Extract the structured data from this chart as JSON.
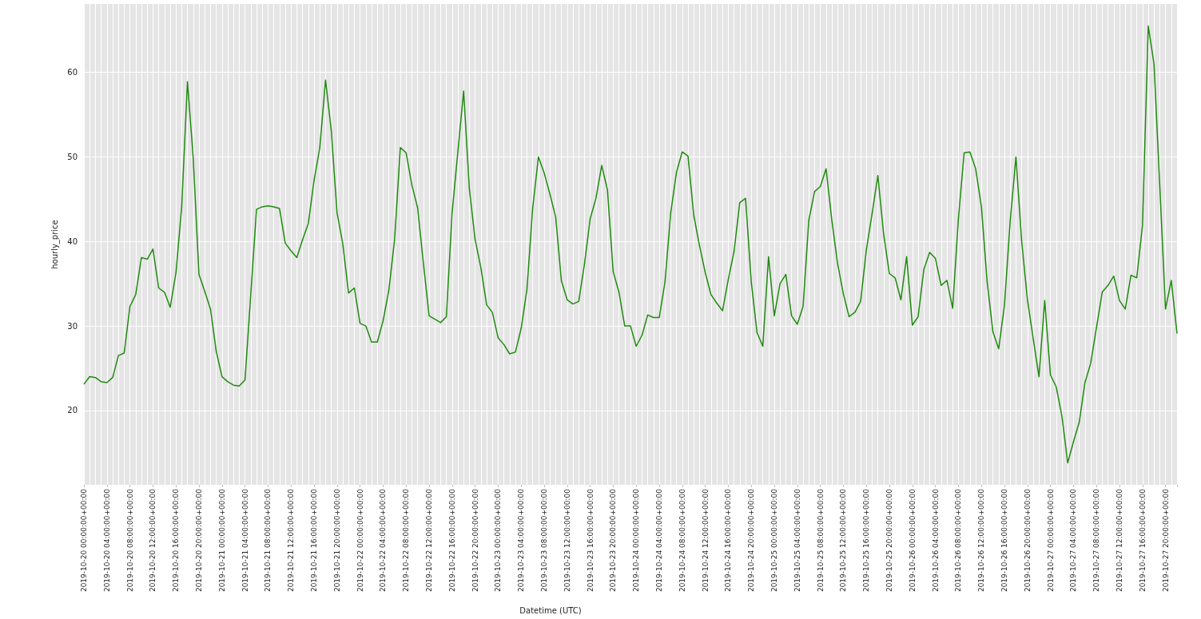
{
  "chart_data": {
    "type": "line",
    "xlabel": "Datetime (UTC)",
    "ylabel": "hourly_price",
    "categories": [
      "2019-10-20 00:00:00+00:00",
      null,
      null,
      null,
      "2019-10-20 04:00:00+00:00",
      null,
      null,
      null,
      "2019-10-20 08:00:00+00:00",
      null,
      null,
      null,
      "2019-10-20 12:00:00+00:00",
      null,
      null,
      null,
      "2019-10-20 16:00:00+00:00",
      null,
      null,
      null,
      "2019-10-20 20:00:00+00:00",
      null,
      null,
      null,
      "2019-10-21 00:00:00+00:00",
      null,
      null,
      null,
      "2019-10-21 04:00:00+00:00",
      null,
      null,
      null,
      "2019-10-21 08:00:00+00:00",
      null,
      null,
      null,
      "2019-10-21 12:00:00+00:00",
      null,
      null,
      null,
      "2019-10-21 16:00:00+00:00",
      null,
      null,
      null,
      "2019-10-21 20:00:00+00:00",
      null,
      null,
      null,
      "2019-10-22 00:00:00+00:00",
      null,
      null,
      null,
      "2019-10-22 04:00:00+00:00",
      null,
      null,
      null,
      "2019-10-22 08:00:00+00:00",
      null,
      null,
      null,
      "2019-10-22 12:00:00+00:00",
      null,
      null,
      null,
      "2019-10-22 16:00:00+00:00",
      null,
      null,
      null,
      "2019-10-22 20:00:00+00:00",
      null,
      null,
      null,
      "2019-10-23 00:00:00+00:00",
      null,
      null,
      null,
      "2019-10-23 04:00:00+00:00",
      null,
      null,
      null,
      "2019-10-23 08:00:00+00:00",
      null,
      null,
      null,
      "2019-10-23 12:00:00+00:00",
      null,
      null,
      null,
      "2019-10-23 16:00:00+00:00",
      null,
      null,
      null,
      "2019-10-23 20:00:00+00:00",
      null,
      null,
      null,
      "2019-10-24 00:00:00+00:00",
      null,
      null,
      null,
      "2019-10-24 04:00:00+00:00",
      null,
      null,
      null,
      "2019-10-24 08:00:00+00:00",
      null,
      null,
      null,
      "2019-10-24 12:00:00+00:00",
      null,
      null,
      null,
      "2019-10-24 16:00:00+00:00",
      null,
      null,
      null,
      "2019-10-24 20:00:00+00:00",
      null,
      null,
      null,
      "2019-10-25 00:00:00+00:00",
      null,
      null,
      null,
      "2019-10-25 04:00:00+00:00",
      null,
      null,
      null,
      "2019-10-25 08:00:00+00:00",
      null,
      null,
      null,
      "2019-10-25 12:00:00+00:00",
      null,
      null,
      null,
      "2019-10-25 16:00:00+00:00",
      null,
      null,
      null,
      "2019-10-25 20:00:00+00:00",
      null,
      null,
      null,
      "2019-10-26 00:00:00+00:00",
      null,
      null,
      null,
      "2019-10-26 04:00:00+00:00",
      null,
      null,
      null,
      "2019-10-26 08:00:00+00:00",
      null,
      null,
      null,
      "2019-10-26 12:00:00+00:00",
      null,
      null,
      null,
      "2019-10-26 16:00:00+00:00",
      null,
      null,
      null,
      "2019-10-26 20:00:00+00:00",
      null,
      null,
      null,
      "2019-10-27 00:00:00+00:00",
      null,
      null,
      null,
      "2019-10-27 04:00:00+00:00",
      null,
      null,
      null,
      "2019-10-27 08:00:00+00:00",
      null,
      null,
      null,
      "2019-10-27 12:00:00+00:00",
      null,
      null,
      null,
      "2019-10-27 16:00:00+00:00",
      null,
      null,
      null,
      "2019-10-27 20:00:00+00:00",
      null,
      null
    ],
    "series": [
      {
        "color": "#208a10",
        "values": [
          23.1,
          24.0,
          23.9,
          23.4,
          23.3,
          23.9,
          26.5,
          26.8,
          32.3,
          33.7,
          38.1,
          37.9,
          39.1,
          34.5,
          34.0,
          32.2,
          36.3,
          44.1,
          58.9,
          49.9,
          36.1,
          34.1,
          32.0,
          27.0,
          24.0,
          23.4,
          23.0,
          22.9,
          23.6,
          33.7,
          43.8,
          44.1,
          44.2,
          44.1,
          43.9,
          39.8,
          38.9,
          38.1,
          40.2,
          42.1,
          47.2,
          51.1,
          59.1,
          53.1,
          43.4,
          39.7,
          33.9,
          34.5,
          30.3,
          30.0,
          28.1,
          28.1,
          30.6,
          34.2,
          40.2,
          51.1,
          50.5,
          46.7,
          44.0,
          37.5,
          31.2,
          30.8,
          30.4,
          31.1,
          43.4,
          50.6,
          57.8,
          46.2,
          40.2,
          36.9,
          32.5,
          31.6,
          28.6,
          27.8,
          26.7,
          26.9,
          29.7,
          34.3,
          43.9,
          50.0,
          48.1,
          45.6,
          42.9,
          35.3,
          33.1,
          32.6,
          32.9,
          37.3,
          42.7,
          45.1,
          49.0,
          46.1,
          36.4,
          34.0,
          30.0,
          30.0,
          27.6,
          28.9,
          31.3,
          31.0,
          31.0,
          35.2,
          43.4,
          48.2,
          50.6,
          50.1,
          43.1,
          39.5,
          36.3,
          33.7,
          32.7,
          31.8,
          35.5,
          38.8,
          44.6,
          45.1,
          35.2,
          29.2,
          27.6,
          38.2,
          31.2,
          35.0,
          36.1,
          31.2,
          30.2,
          32.3,
          42.5,
          45.9,
          46.5,
          48.6,
          42.5,
          37.4,
          33.8,
          31.1,
          31.6,
          32.9,
          39.0,
          43.3,
          47.8,
          40.9,
          36.2,
          35.7,
          33.1,
          38.2,
          30.1,
          31.1,
          36.7,
          38.7,
          38.0,
          34.8,
          35.4,
          32.1,
          42.7,
          50.5,
          50.6,
          48.6,
          44.1,
          35.2,
          29.3,
          27.3,
          32.4,
          42.4,
          50.0,
          40.0,
          33.1,
          28.5,
          24.0,
          33.0,
          24.2,
          22.8,
          19.3,
          13.8,
          16.3,
          18.6,
          23.3,
          25.6,
          29.8,
          34.0,
          34.8,
          35.9,
          33.0,
          32.0,
          36.0,
          35.7,
          41.9,
          65.5,
          61.0,
          46.6,
          32.0,
          35.4,
          29.1
        ]
      }
    ],
    "ylim": [
      11.2,
      68.1
    ],
    "yticks": [
      20,
      30,
      40,
      50,
      60
    ],
    "grid": true,
    "marker": "none",
    "line_style": "solid"
  }
}
